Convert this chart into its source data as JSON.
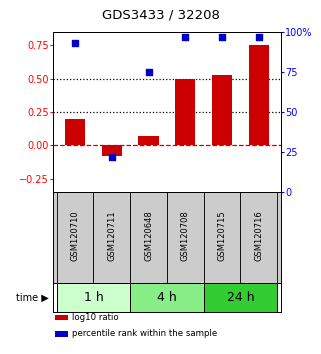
{
  "title": "GDS3433 / 32208",
  "samples": [
    "GSM120710",
    "GSM120711",
    "GSM120648",
    "GSM120708",
    "GSM120715",
    "GSM120716"
  ],
  "log10_ratio": [
    0.2,
    -0.08,
    0.07,
    0.5,
    0.53,
    0.75
  ],
  "percentile_rank": [
    93,
    22,
    75,
    97,
    97,
    97
  ],
  "time_groups": [
    {
      "label": "1 h",
      "indices": [
        0,
        1
      ],
      "color": "#ccffcc"
    },
    {
      "label": "4 h",
      "indices": [
        2,
        3
      ],
      "color": "#88ee88"
    },
    {
      "label": "24 h",
      "indices": [
        4,
        5
      ],
      "color": "#33cc33"
    }
  ],
  "bar_color": "#cc0000",
  "dot_color": "#0000cc",
  "ylim_left": [
    -0.35,
    0.85
  ],
  "ylim_right": [
    0,
    100
  ],
  "yticks_left": [
    -0.25,
    0.0,
    0.25,
    0.5,
    0.75
  ],
  "yticks_right": [
    0,
    25,
    50,
    75,
    100
  ],
  "hlines": [
    0.25,
    0.5
  ],
  "zero_line_color": "#cc0000",
  "hline_color": "black",
  "bg_color": "white",
  "legend": [
    {
      "label": "log10 ratio",
      "color": "#cc0000"
    },
    {
      "label": "percentile rank within the sample",
      "color": "#0000cc"
    }
  ],
  "sample_cell_color": "#cccccc",
  "time_label_fontsize": 9,
  "sample_label_fontsize": 6
}
